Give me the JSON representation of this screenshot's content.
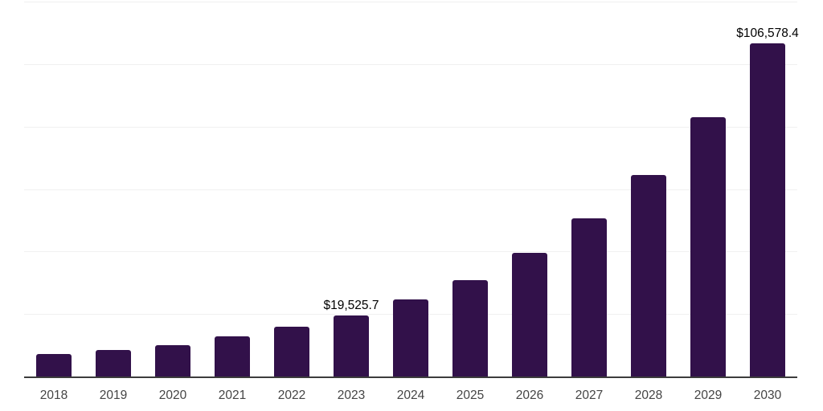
{
  "chart_data": {
    "type": "bar",
    "title": "",
    "xlabel": "",
    "ylabel": "",
    "categories": [
      "2018",
      "2019",
      "2020",
      "2021",
      "2022",
      "2023",
      "2024",
      "2025",
      "2026",
      "2027",
      "2028",
      "2029",
      "2030"
    ],
    "values": [
      7150,
      8440,
      10000,
      12800,
      15950,
      19525.7,
      24600,
      30950,
      39700,
      50600,
      64600,
      82900,
      106578.4
    ],
    "data_labels": {
      "2023": "$19,525.7",
      "2030": "$106,578.4"
    },
    "ylim": [
      0,
      120000
    ],
    "gridline_step": 20000,
    "y_axis_labels_visible": false,
    "grid": "horizontal",
    "legend_position": "none",
    "colors": {
      "bar": "#32114a",
      "axis_line": "#3c3c3c",
      "gridline": "#f0f0f0",
      "tick_label": "#444444",
      "data_label": "#000000",
      "background": "#ffffff"
    }
  }
}
